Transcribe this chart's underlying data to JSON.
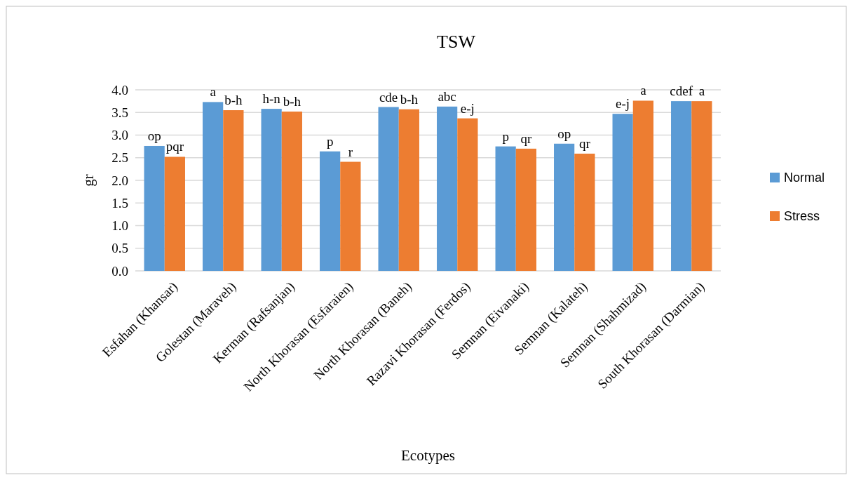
{
  "chart_data": {
    "type": "bar",
    "title": "TSW",
    "xlabel": "Ecotypes",
    "ylabel": "gr",
    "categories": [
      "Esfahan (Khansar)",
      "Golestan (Maraveh)",
      "Kerman (Rafsanjan)",
      "North Khorasan (Esfaraien)",
      "North Khorasan (Baneh)",
      "Razavi Khorasan (Ferdos)",
      "Semnan (Eivanaki)",
      "Semnan (Kalateh)",
      "Semnan (Shahmizad)",
      "South Khorasan (Darmian)"
    ],
    "series": [
      {
        "name": "Normal",
        "color": "#5b9bd5",
        "values": [
          2.76,
          3.73,
          3.58,
          2.64,
          3.62,
          3.63,
          2.75,
          2.81,
          3.47,
          3.75
        ],
        "value_labels": [
          "op",
          "a",
          "h-n",
          "p",
          "cde",
          "abc",
          "p",
          "op",
          "e-j",
          "cdef"
        ]
      },
      {
        "name": "Stress",
        "color": "#ed7d31",
        "values": [
          2.52,
          3.55,
          3.52,
          2.41,
          3.57,
          3.37,
          2.7,
          2.59,
          3.76,
          3.75
        ],
        "value_labels": [
          "pqr",
          "b-h",
          "b-h",
          "r",
          "b-h",
          "e-j",
          "qr",
          "qr",
          "a",
          "a"
        ]
      }
    ],
    "ylim": [
      0,
      4
    ],
    "yticks": [
      {
        "value": 0,
        "label": "0.0"
      },
      {
        "value": 0.5,
        "label": "0.5"
      },
      {
        "value": 1,
        "label": "1.0"
      },
      {
        "value": 1.5,
        "label": "1.5"
      },
      {
        "value": 2,
        "label": "2.0"
      },
      {
        "value": 2.5,
        "label": "2.5"
      },
      {
        "value": 3,
        "label": "3.0"
      },
      {
        "value": 3.5,
        "label": "3.5"
      },
      {
        "value": 4,
        "label": "4.0"
      }
    ],
    "grid": "y",
    "legend": "right"
  }
}
